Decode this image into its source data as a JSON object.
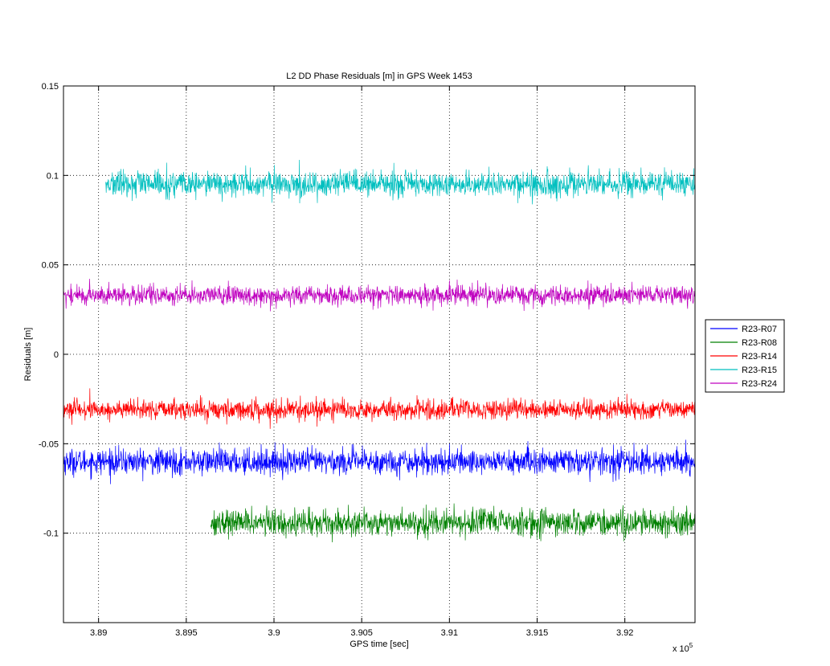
{
  "chart_data": {
    "type": "line",
    "title": "L2 DD Phase Residuals [m] in GPS Week 1453",
    "xlabel": "GPS time [sec]",
    "ylabel": "Residuals [m]",
    "x_multiplier_label": "x 10",
    "x_multiplier_exponent": "5",
    "xlim": [
      388800,
      392400
    ],
    "ylim": [
      -0.15,
      0.15
    ],
    "x_ticks": [
      389000,
      389500,
      390000,
      390500,
      391000,
      391500,
      392000
    ],
    "x_tick_labels": [
      "3.89",
      "3.895",
      "3.9",
      "3.905",
      "3.91",
      "3.915",
      "3.92"
    ],
    "y_ticks": [
      -0.1,
      -0.05,
      0,
      0.05,
      0.1,
      0.15
    ],
    "y_tick_labels": [
      "-0.1",
      "-0.05",
      "0",
      "0.05",
      "0.1",
      "0.15"
    ],
    "grid": true,
    "legend_position": "outside-right",
    "series": [
      {
        "name": "R23-R07",
        "color": "#0000ff",
        "x_start": 388800,
        "x_end": 392400,
        "mean": -0.06,
        "noise_amplitude": 0.004
      },
      {
        "name": "R23-R08",
        "color": "#008000",
        "x_start": 389640,
        "x_end": 392400,
        "mean": -0.094,
        "noise_amplitude": 0.004
      },
      {
        "name": "R23-R14",
        "color": "#ff0000",
        "x_start": 388800,
        "x_end": 392400,
        "mean": -0.031,
        "noise_amplitude": 0.003
      },
      {
        "name": "R23-R15",
        "color": "#00bfbf",
        "x_start": 389040,
        "x_end": 392400,
        "mean": 0.095,
        "noise_amplitude": 0.004
      },
      {
        "name": "R23-R24",
        "color": "#bf00bf",
        "x_start": 388800,
        "x_end": 392400,
        "mean": 0.033,
        "noise_amplitude": 0.003
      }
    ]
  }
}
